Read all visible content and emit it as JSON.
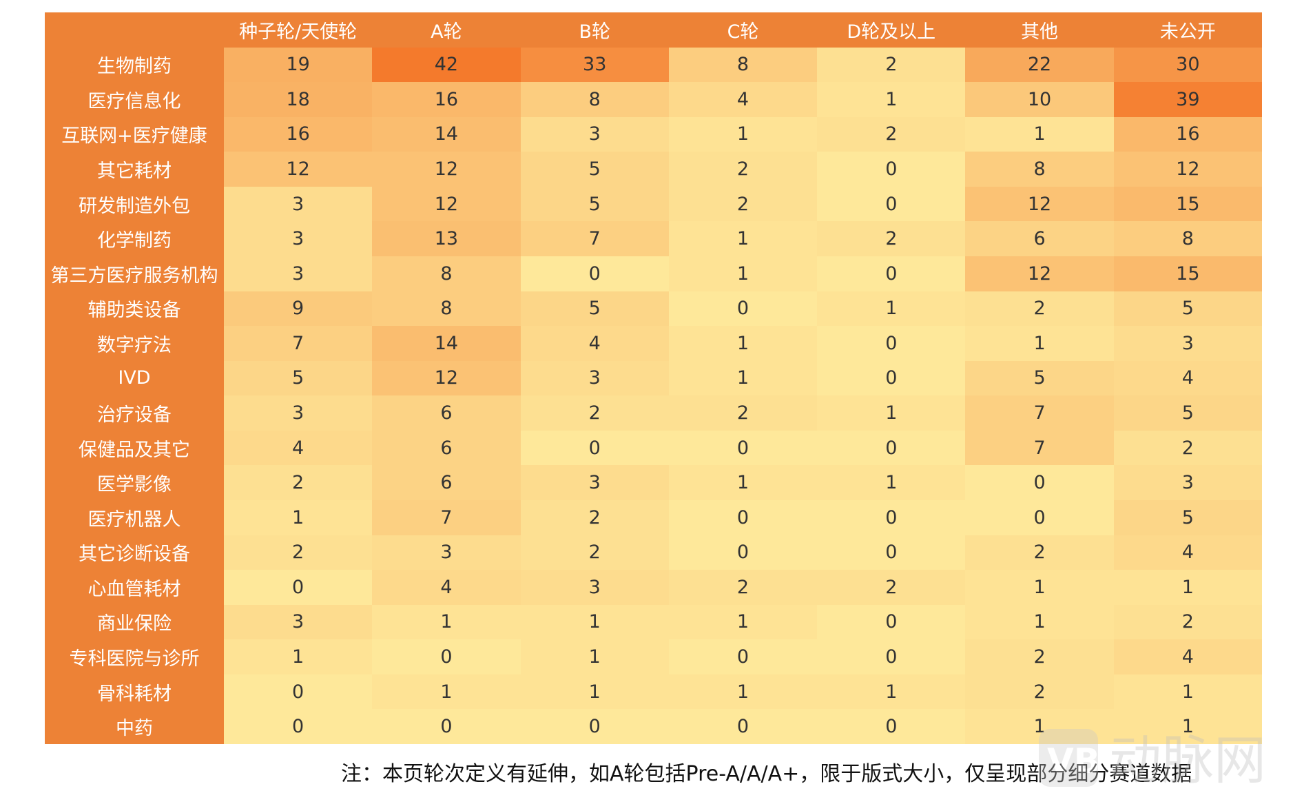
{
  "chart_data": {
    "type": "heatmap",
    "columns": [
      "种子轮/天使轮",
      "A轮",
      "B轮",
      "C轮",
      "D轮及以上",
      "其他",
      "未公开"
    ],
    "rows": [
      "生物制药",
      "医疗信息化",
      "互联网+医疗健康",
      "其它耗材",
      "研发制造外包",
      "化学制药",
      "第三方医疗服务机构",
      "辅助类设备",
      "数字疗法",
      "IVD",
      "治疗设备",
      "保健品及其它",
      "医学影像",
      "医疗机器人",
      "其它诊断设备",
      "心血管耗材",
      "商业保险",
      "专科医院与诊所",
      "骨科耗材",
      "中药"
    ],
    "values": [
      [
        19,
        42,
        33,
        8,
        2,
        22,
        30
      ],
      [
        18,
        16,
        8,
        4,
        1,
        10,
        39
      ],
      [
        16,
        14,
        3,
        1,
        2,
        1,
        16
      ],
      [
        12,
        12,
        5,
        2,
        0,
        8,
        12
      ],
      [
        3,
        12,
        5,
        2,
        0,
        12,
        15
      ],
      [
        3,
        13,
        7,
        1,
        2,
        6,
        8
      ],
      [
        3,
        8,
        0,
        1,
        0,
        12,
        15
      ],
      [
        9,
        8,
        5,
        0,
        1,
        2,
        5
      ],
      [
        7,
        14,
        4,
        1,
        0,
        1,
        3
      ],
      [
        5,
        12,
        3,
        1,
        0,
        5,
        4
      ],
      [
        3,
        6,
        2,
        2,
        1,
        7,
        5
      ],
      [
        4,
        6,
        0,
        0,
        0,
        7,
        2
      ],
      [
        2,
        6,
        3,
        1,
        1,
        0,
        3
      ],
      [
        1,
        7,
        2,
        0,
        0,
        0,
        5
      ],
      [
        2,
        3,
        2,
        0,
        0,
        2,
        4
      ],
      [
        0,
        4,
        3,
        2,
        2,
        1,
        1
      ],
      [
        3,
        1,
        1,
        1,
        0,
        1,
        2
      ],
      [
        1,
        0,
        1,
        0,
        0,
        2,
        4
      ],
      [
        0,
        1,
        1,
        1,
        1,
        2,
        1
      ],
      [
        0,
        0,
        0,
        0,
        0,
        1,
        1
      ]
    ],
    "color_low": "#fee89a",
    "color_high": "#f47a2c",
    "header_color": "#ed8236",
    "note": "注：本页轮次定义有延伸，如A轮包括Pre-A/A/A+，限于版式大小，仅呈现部分细分赛道数据"
  },
  "watermark": {
    "text": "动脉网",
    "logo": "vb-logo-icon"
  }
}
